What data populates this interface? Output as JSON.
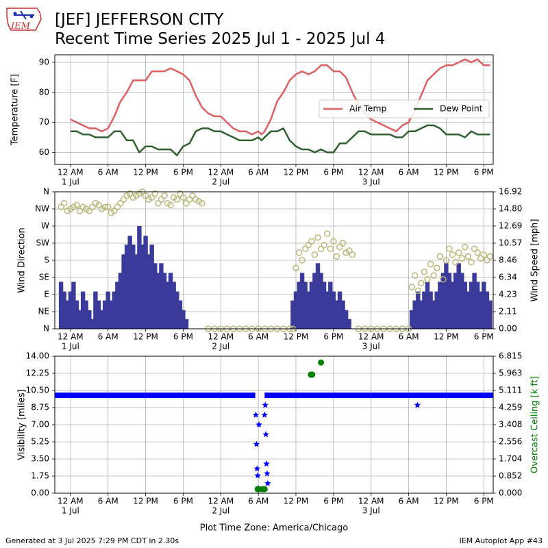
{
  "header": {
    "logo_text": "IEM",
    "title_line1": "[JEF] JEFFERSON CITY",
    "title_line2": "Recent Time Series 2025 Jul 1 - 2025 Jul 4"
  },
  "footer": {
    "left": "Generated at 3 Jul 2025 7:29 PM CDT in 2.30s",
    "right": "IEM Autoplot App #43"
  },
  "colors": {
    "air_temp": "#dd5f61",
    "dew_point": "#2f5f2f",
    "wind_dir": "#b8b87a",
    "wind_speed": "#3a3a9a",
    "visibility": "#0000ff",
    "ceiling": "#008000",
    "grid": "#b0b0b0"
  },
  "time_axis": {
    "tick_labels": [
      "12 AM",
      "6 AM",
      "12 PM",
      "6 PM",
      "12 AM",
      "6 AM",
      "12 PM",
      "6 PM",
      "12 AM",
      "6 AM",
      "12 PM",
      "6 PM"
    ],
    "day_labels": [
      {
        "text": "1 Jul",
        "hour": 0
      },
      {
        "text": "2 Jul",
        "hour": 24
      },
      {
        "text": "3 Jul",
        "hour": 48
      }
    ],
    "range_hours": [
      -2.5,
      67.5
    ],
    "time_zone_label": "Plot Time Zone: America/Chicago"
  },
  "chart_data": [
    {
      "type": "line",
      "ylabel": "Temperature [F]",
      "ylim": [
        56,
        92.5
      ],
      "yticks": [
        60,
        70,
        80,
        90
      ],
      "grid": true,
      "legend": "right",
      "x_units": "hours since 1 Jul 12 AM",
      "series": [
        {
          "name": "Air Temp",
          "x": [
            0,
            1,
            2,
            3,
            4,
            5,
            6,
            7,
            8,
            9,
            10,
            11,
            12,
            13,
            14,
            15,
            16,
            17,
            18,
            19,
            20,
            21,
            22,
            23,
            24,
            25,
            26,
            27,
            28,
            29,
            30,
            30.5,
            31,
            32,
            33,
            34,
            35,
            36,
            37,
            38,
            39,
            40,
            41,
            42,
            43,
            44,
            45,
            46,
            47,
            48,
            49,
            50,
            51,
            52,
            53,
            54,
            55,
            56,
            57,
            58,
            59,
            60,
            61,
            62,
            63,
            64,
            65,
            66,
            67
          ],
          "values": [
            71,
            70,
            69,
            68,
            68,
            67,
            68,
            72,
            77,
            80,
            84,
            84,
            84,
            87,
            87,
            87,
            88,
            87,
            86,
            84,
            79,
            75,
            73,
            72,
            72,
            70,
            68,
            67,
            67,
            66,
            67,
            66,
            67,
            71,
            77,
            80,
            84,
            86,
            87,
            86,
            87,
            89,
            89,
            87,
            87,
            85,
            80,
            76,
            73,
            71,
            70,
            69,
            68,
            67,
            69,
            70,
            74,
            79,
            84,
            86,
            88,
            89,
            89,
            90,
            91,
            90,
            91,
            89,
            89
          ]
        },
        {
          "name": "Dew Point",
          "x": [
            0,
            1,
            2,
            3,
            4,
            5,
            6,
            7,
            8,
            9,
            10,
            11,
            12,
            13,
            14,
            15,
            16,
            17,
            18,
            19,
            20,
            21,
            22,
            23,
            24,
            25,
            26,
            27,
            28,
            29,
            30,
            30.5,
            31,
            32,
            33,
            34,
            35,
            36,
            37,
            38,
            39,
            40,
            41,
            42,
            43,
            44,
            45,
            46,
            47,
            48,
            49,
            50,
            51,
            52,
            53,
            54,
            55,
            56,
            57,
            58,
            59,
            60,
            61,
            62,
            63,
            64,
            65,
            66,
            67
          ],
          "values": [
            67,
            67,
            66,
            66,
            65,
            65,
            65,
            67,
            67,
            64,
            64,
            60,
            62,
            62,
            61,
            61,
            61,
            59,
            62,
            63,
            67,
            68,
            68,
            67,
            67,
            66,
            65,
            64,
            64,
            64,
            65,
            64,
            65,
            67,
            67,
            68,
            64,
            62,
            61,
            61,
            60,
            61,
            60,
            60,
            63,
            63,
            65,
            67,
            67,
            66,
            66,
            66,
            66,
            65,
            65,
            67,
            67,
            68,
            69,
            69,
            68,
            66,
            66,
            66,
            65,
            67,
            66,
            66,
            66
          ]
        }
      ]
    },
    {
      "type": "scatter",
      "ylabel": "Wind Direction",
      "y2label": "Wind Speed [mph]",
      "yticks": [
        "N",
        "NE",
        "E",
        "SE",
        "S",
        "SW",
        "W",
        "NW",
        "N"
      ],
      "ylim": [
        0,
        360
      ],
      "y2ticks": [
        "0.00",
        "2.11",
        "4.23",
        "6.34",
        "8.46",
        "10.57",
        "12.69",
        "14.80",
        "16.92"
      ],
      "y2lim": [
        0,
        16.92
      ],
      "grid": true,
      "x_units": "hours since 1 Jul 12 AM",
      "series": [
        {
          "name": "Wind Direction",
          "type": "scatter",
          "x": [
            -1.5,
            -1,
            -0.5,
            0,
            0.5,
            1,
            1.5,
            2,
            2.5,
            3,
            3.5,
            4,
            4.5,
            5,
            5.5,
            6,
            6.5,
            7,
            7.5,
            8,
            8.5,
            9,
            9.5,
            10,
            10.5,
            11,
            11.5,
            12,
            12.5,
            13,
            13.5,
            14,
            14.5,
            15,
            15.5,
            16,
            16.5,
            17,
            17.5,
            18,
            18.5,
            19,
            19.5,
            20,
            20.5,
            21,
            22,
            23,
            24,
            25,
            26,
            27,
            28,
            29,
            30,
            31,
            32,
            33,
            34,
            35,
            35.5,
            36,
            36.5,
            37,
            37.5,
            38,
            38.5,
            39,
            39.5,
            40,
            40.5,
            41,
            41.5,
            42,
            42.5,
            43,
            43.5,
            44,
            44.5,
            45,
            46,
            47,
            48,
            49,
            50,
            51,
            52,
            53,
            54,
            54.5,
            55,
            55.5,
            56,
            56.5,
            57,
            57.5,
            58,
            58.5,
            59,
            59.5,
            60,
            60.5,
            61,
            61.5,
            62,
            62.5,
            63,
            63.5,
            64,
            64.5,
            65,
            65.5,
            66,
            66.5,
            67
          ],
          "values": [
            320,
            330,
            310,
            315,
            320,
            325,
            310,
            320,
            315,
            310,
            320,
            330,
            325,
            315,
            320,
            320,
            305,
            310,
            320,
            330,
            340,
            350,
            355,
            345,
            350,
            355,
            360,
            350,
            340,
            345,
            355,
            330,
            340,
            350,
            330,
            325,
            345,
            340,
            355,
            345,
            330,
            340,
            350,
            340,
            335,
            330,
            0,
            0,
            0,
            0,
            0,
            0,
            0,
            0,
            0,
            0,
            0,
            0,
            0,
            0,
            0,
            160,
            200,
            180,
            210,
            220,
            230,
            195,
            240,
            210,
            220,
            250,
            210,
            230,
            190,
            215,
            225,
            200,
            205,
            195,
            0,
            0,
            0,
            0,
            0,
            0,
            0,
            0,
            0,
            110,
            140,
            100,
            120,
            150,
            130,
            170,
            140,
            160,
            190,
            130,
            180,
            210,
            195,
            175,
            200,
            185,
            215,
            190,
            175,
            210,
            200,
            185,
            195,
            180,
            190
          ]
        },
        {
          "name": "Wind Speed",
          "type": "bar",
          "x": [
            -1.5,
            -1,
            -0.5,
            0,
            0.5,
            1,
            1.5,
            2,
            2.5,
            3,
            3.5,
            4,
            4.5,
            5,
            5.5,
            6,
            6.5,
            7,
            7.5,
            8,
            8.5,
            9,
            9.5,
            10,
            10.5,
            11,
            11.5,
            12,
            12.5,
            13,
            13.5,
            14,
            14.5,
            15,
            15.5,
            16,
            16.5,
            17,
            17.5,
            18,
            18.5,
            19,
            19.5,
            20,
            20.5,
            21,
            22,
            23,
            24,
            25,
            26,
            27,
            28,
            29,
            30,
            31,
            32,
            33,
            34,
            35,
            35.5,
            36,
            36.5,
            37,
            37.5,
            38,
            38.5,
            39,
            39.5,
            40,
            40.5,
            41,
            41.5,
            42,
            42.5,
            43,
            43.5,
            44,
            44.5,
            45,
            46,
            47,
            48,
            49,
            50,
            51,
            52,
            53,
            54,
            54.5,
            55,
            55.5,
            56,
            56.5,
            57,
            57.5,
            58,
            58.5,
            59,
            59.5,
            60,
            60.5,
            61,
            61.5,
            62,
            62.5,
            63,
            63.5,
            64,
            64.5,
            65,
            65.5,
            66,
            66.5,
            67
          ],
          "values": [
            5.8,
            4.6,
            3.5,
            4.6,
            5.8,
            3.5,
            2.3,
            4.6,
            3.5,
            2.3,
            1.2,
            4.6,
            3.5,
            2.3,
            3.5,
            4.6,
            3.5,
            4.6,
            5.8,
            6.9,
            9.2,
            10.4,
            11.5,
            10.4,
            9.2,
            12.7,
            10.4,
            11.5,
            9.2,
            10.4,
            8.1,
            6.9,
            8.1,
            6.9,
            5.8,
            6.9,
            5.8,
            4.6,
            3.5,
            2.3,
            1.2,
            0,
            0,
            0,
            0,
            0,
            0,
            0,
            0,
            0,
            0,
            0,
            0,
            0,
            0,
            0,
            0,
            0,
            0,
            0,
            3.5,
            4.6,
            5.8,
            6.9,
            5.8,
            4.6,
            5.8,
            6.9,
            8.1,
            6.9,
            5.8,
            4.6,
            5.8,
            4.6,
            3.5,
            4.6,
            3.5,
            2.3,
            1.2,
            0,
            0,
            0,
            0,
            0,
            0,
            0,
            0,
            0,
            0,
            2.3,
            3.5,
            4.6,
            3.5,
            4.6,
            5.8,
            4.6,
            3.5,
            4.6,
            5.8,
            6.9,
            8.1,
            6.9,
            5.8,
            6.9,
            8.1,
            6.9,
            5.8,
            4.6,
            5.8,
            6.9,
            5.8,
            4.6,
            5.8,
            4.6,
            3.5
          ]
        }
      ]
    },
    {
      "type": "scatter",
      "ylabel": "Visibility [miles]",
      "y2label": "Overcast Ceiling [k ft]",
      "yticks": [
        "0.00",
        "1.75",
        "3.50",
        "5.25",
        "7.00",
        "8.75",
        "10.50",
        "12.25",
        "14.00"
      ],
      "ylim": [
        0,
        14
      ],
      "y2ticks": [
        "0.000",
        "0.852",
        "1.704",
        "2.556",
        "3.408",
        "4.259",
        "5.111",
        "5.963",
        "6.815"
      ],
      "y2lim": [
        0,
        6.815
      ],
      "grid": true,
      "x_units": "hours since 1 Jul 12 AM",
      "series": [
        {
          "name": "Visibility",
          "marker": "star",
          "x": [
            29.6,
            29.7,
            29.8,
            29.9,
            30.0,
            30.1,
            31.0,
            31.1,
            31.2,
            31.3,
            31.4,
            31.5,
            55.4
          ],
          "values": [
            8.0,
            5.0,
            2.5,
            1.8,
            0.5,
            7.0,
            8.0,
            9.0,
            6.0,
            3.0,
            2.0,
            1.0,
            9.0
          ],
          "baseline": {
            "value": 10.0,
            "x_from": -2.5,
            "x_to": 67.5,
            "gap_from": 29.5,
            "gap_to": 31.0
          }
        },
        {
          "name": "Overcast Ceiling",
          "marker": "circle",
          "x": [
            29.9,
            30.1,
            30.7,
            31.0,
            38.4,
            38.5,
            38.6,
            40.0
          ],
          "values": [
            0.2,
            0.2,
            0.2,
            0.2,
            5.9,
            5.9,
            5.9,
            6.5
          ]
        }
      ]
    }
  ]
}
